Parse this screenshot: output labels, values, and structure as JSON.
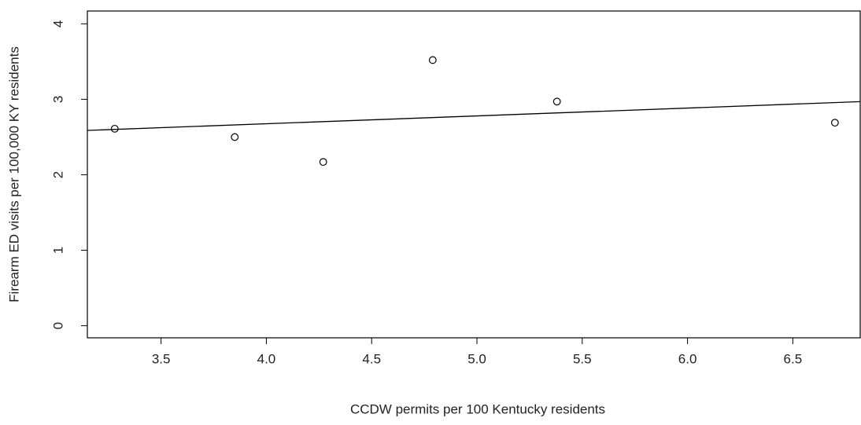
{
  "chart_data": {
    "type": "scatter",
    "x_label": "CCDW permits per 100 Kentucky residents",
    "y_label": "Firearm ED visits per 100,000 KY residents",
    "x": [
      3.28,
      3.85,
      4.27,
      4.79,
      5.38,
      6.7
    ],
    "series": [
      {
        "color": "#000000",
        "values": [
          2.61,
          2.5,
          2.17,
          3.52,
          2.97,
          2.69
        ]
      }
    ],
    "regression": {
      "intercept": 2.26,
      "slope": 0.104,
      "color": "#000000"
    },
    "xlim": [
      3.15,
      6.82
    ],
    "ylim": [
      -0.16,
      4.17
    ],
    "xticks": [
      3.5,
      {
        "value": 4,
        "label": "4.0"
      },
      4.5,
      {
        "value": 5,
        "label": "5.0"
      },
      5.5,
      {
        "value": 6,
        "label": "6.0"
      },
      6.5
    ],
    "yticks": [
      0,
      1,
      2,
      3,
      4
    ],
    "grid": false
  }
}
